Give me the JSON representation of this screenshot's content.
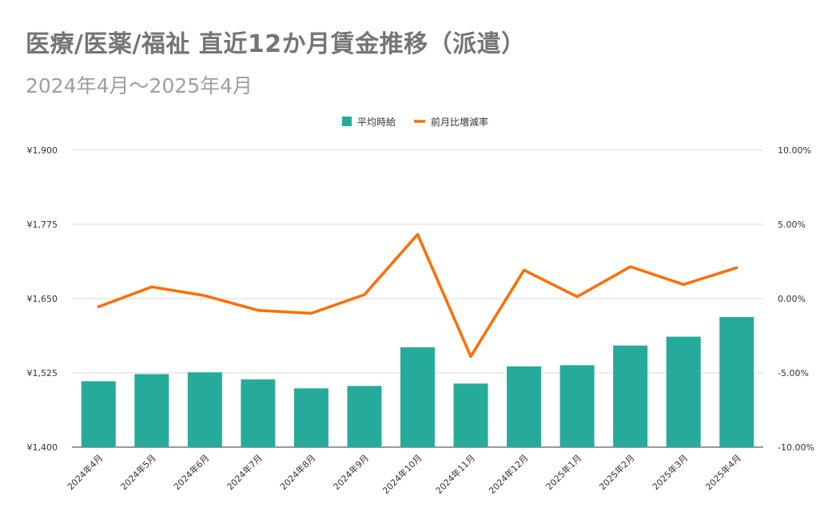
{
  "header": {
    "title": "医療/医薬/福祉 直近12か月賃金推移（派遣）",
    "subtitle": "2024年4月～2025年4月"
  },
  "colors": {
    "bar": "#26ab9b",
    "line": "#ff6d01",
    "grid": "#d9d9d9",
    "axis": "#333333"
  },
  "chart_data": {
    "type": "bar",
    "title": "医療/医薬/福祉 直近12か月賃金推移（派遣）",
    "subtitle": "2024年4月～2025年4月",
    "legend_position": "top-center",
    "grid": true,
    "categories": [
      "2024年4月",
      "2024年5月",
      "2024年6月",
      "2024年7月",
      "2024年8月",
      "2024年9月",
      "2024年10月",
      "2024年11月",
      "2024年12月",
      "2025年1月",
      "2025年2月",
      "2025年3月",
      "2025年4月"
    ],
    "series": [
      {
        "name": "平均時給",
        "type": "bar",
        "axis": "left",
        "values": [
          1511,
          1523,
          1526,
          1514,
          1499,
          1503,
          1568,
          1507,
          1536,
          1538,
          1571,
          1586,
          1619
        ]
      },
      {
        "name": "前月比増減率",
        "type": "line",
        "axis": "right",
        "values": [
          -0.55,
          0.79,
          0.2,
          -0.79,
          -0.99,
          0.27,
          4.33,
          -3.89,
          1.92,
          0.13,
          2.15,
          0.95,
          2.08
        ]
      }
    ],
    "y_left": {
      "min": 1400,
      "max": 1900,
      "ticks": [
        "¥1,400",
        "¥1,525",
        "¥1,650",
        "¥1,775",
        "¥1,900"
      ]
    },
    "y_right": {
      "min": -10,
      "max": 10,
      "ticks": [
        "-10.00%",
        "-5.00%",
        "0.00%",
        "5.00%",
        "10.00%"
      ]
    }
  }
}
